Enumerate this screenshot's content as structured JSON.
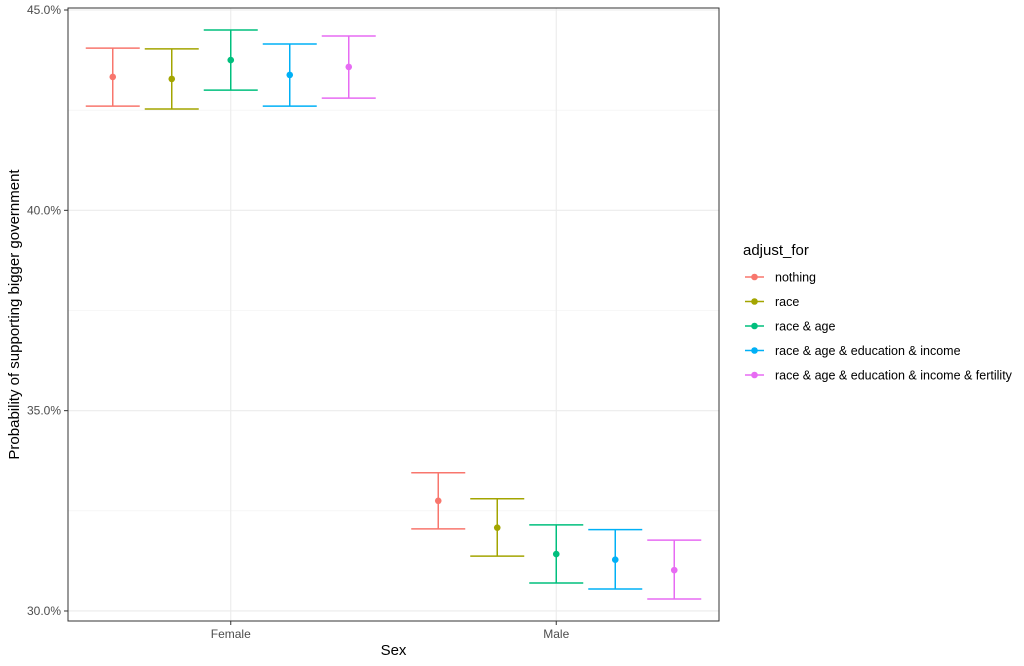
{
  "chart_data": {
    "type": "errorbar",
    "title": "",
    "xlabel": "Sex",
    "ylabel": "Probability of supporting bigger government",
    "categories": [
      "Female",
      "Male"
    ],
    "ylim": [
      0.2975,
      0.4505
    ],
    "yticks": [
      0.3,
      0.35,
      0.4,
      0.45
    ],
    "ytick_labels": [
      "30.0%",
      "35.0%",
      "40.0%",
      "45.0%"
    ],
    "grid": true,
    "legend": {
      "title": "adjust_for",
      "position": "right"
    },
    "series": [
      {
        "name": "nothing",
        "color": "#F8766D",
        "points": [
          {
            "category": "Female",
            "estimate": 0.4333,
            "lower": 0.426,
            "upper": 0.4405
          },
          {
            "category": "Male",
            "estimate": 0.3275,
            "lower": 0.3205,
            "upper": 0.3345
          }
        ]
      },
      {
        "name": "race",
        "color": "#A3A500",
        "points": [
          {
            "category": "Female",
            "estimate": 0.4328,
            "lower": 0.4253,
            "upper": 0.4403
          },
          {
            "category": "Male",
            "estimate": 0.3208,
            "lower": 0.3137,
            "upper": 0.328
          }
        ]
      },
      {
        "name": "race & age",
        "color": "#00BF7D",
        "points": [
          {
            "category": "Female",
            "estimate": 0.4375,
            "lower": 0.43,
            "upper": 0.445
          },
          {
            "category": "Male",
            "estimate": 0.3142,
            "lower": 0.307,
            "upper": 0.3215
          }
        ]
      },
      {
        "name": "race & age & education & income",
        "color": "#00B0F6",
        "points": [
          {
            "category": "Female",
            "estimate": 0.4338,
            "lower": 0.426,
            "upper": 0.4415
          },
          {
            "category": "Male",
            "estimate": 0.3128,
            "lower": 0.3055,
            "upper": 0.3203
          }
        ]
      },
      {
        "name": "race & age & education & income & fertility",
        "color": "#E76BF3",
        "points": [
          {
            "category": "Female",
            "estimate": 0.4358,
            "lower": 0.428,
            "upper": 0.4435
          },
          {
            "category": "Male",
            "estimate": 0.3102,
            "lower": 0.303,
            "upper": 0.3177
          }
        ]
      }
    ]
  }
}
